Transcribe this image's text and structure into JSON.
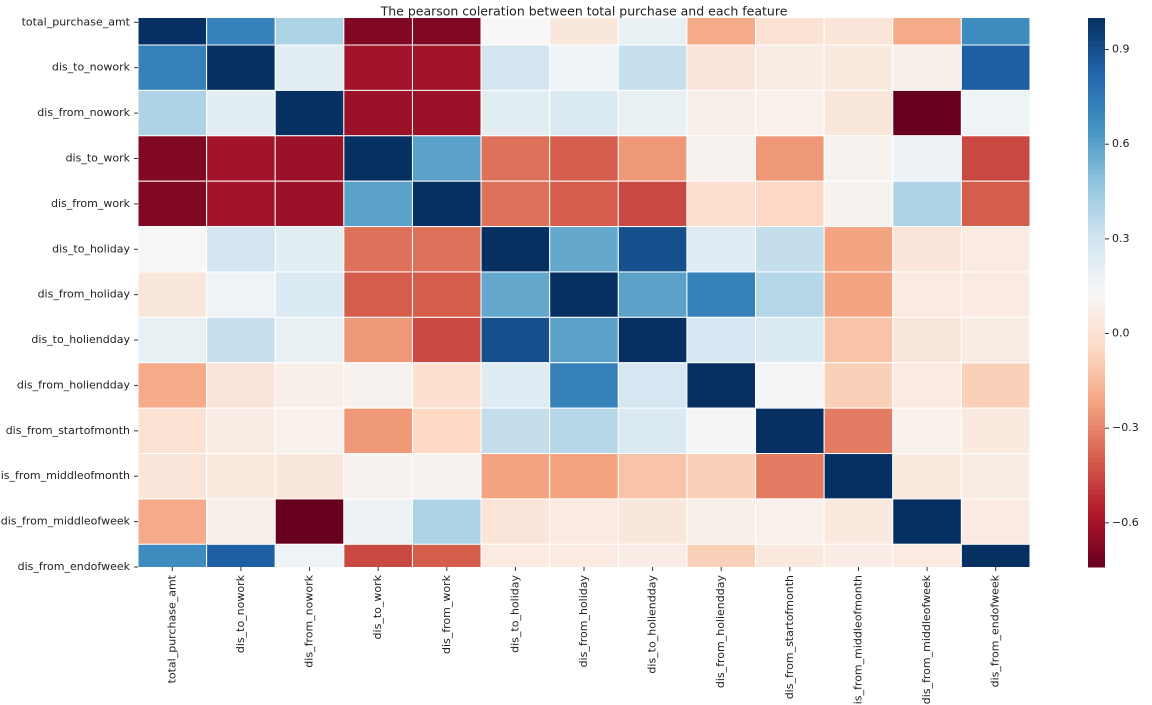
{
  "chart_data": {
    "type": "heatmap",
    "title": "The pearson coleration between total purchase and each feature",
    "categories": [
      "total_purchase_amt",
      "dis_to_nowork",
      "dis_from_nowork",
      "dis_to_work",
      "dis_from_work",
      "dis_to_holiday",
      "dis_from_holiday",
      "dis_to_holiendday",
      "dis_from_holiendday",
      "dis_from_startofmonth",
      "dis_from_middleofmonth",
      "dis_from_middleofweek",
      "dis_from_endofweek"
    ],
    "values": [
      [
        1.0,
        0.72,
        0.4,
        -0.68,
        -0.68,
        0.13,
        0.03,
        0.2,
        -0.2,
        0.0,
        0.02,
        -0.2,
        0.68
      ],
      [
        0.72,
        1.0,
        0.22,
        -0.6,
        -0.6,
        0.3,
        0.17,
        0.33,
        0.02,
        0.06,
        0.04,
        0.08,
        0.85
      ],
      [
        0.4,
        0.22,
        1.0,
        -0.62,
        -0.62,
        0.22,
        0.26,
        0.2,
        0.08,
        0.09,
        0.03,
        -0.74,
        0.17
      ],
      [
        -0.68,
        -0.6,
        -0.62,
        1.0,
        0.6,
        -0.35,
        -0.4,
        -0.25,
        0.1,
        -0.25,
        0.1,
        0.18,
        -0.45
      ],
      [
        -0.68,
        -0.6,
        -0.62,
        0.6,
        1.0,
        -0.35,
        -0.4,
        -0.45,
        -0.02,
        -0.05,
        0.1,
        0.4,
        -0.4
      ],
      [
        0.13,
        0.3,
        0.22,
        -0.35,
        -0.35,
        1.0,
        0.58,
        0.9,
        0.24,
        0.34,
        -0.22,
        0.02,
        0.05
      ],
      [
        0.03,
        0.17,
        0.26,
        -0.4,
        -0.4,
        0.58,
        1.0,
        0.6,
        0.72,
        0.38,
        -0.22,
        0.05,
        0.05
      ],
      [
        0.2,
        0.33,
        0.2,
        -0.25,
        -0.45,
        0.9,
        0.6,
        1.0,
        0.28,
        0.26,
        -0.12,
        0.03,
        0.06
      ],
      [
        -0.2,
        0.02,
        0.08,
        0.1,
        -0.02,
        0.24,
        0.72,
        0.28,
        1.0,
        0.15,
        -0.08,
        0.05,
        -0.08
      ],
      [
        0.0,
        0.06,
        0.09,
        -0.25,
        -0.05,
        0.34,
        0.38,
        0.26,
        0.15,
        1.0,
        -0.32,
        0.09,
        0.04
      ],
      [
        0.02,
        0.04,
        0.03,
        0.1,
        0.1,
        -0.22,
        -0.22,
        -0.12,
        -0.08,
        -0.32,
        1.0,
        0.04,
        0.06
      ],
      [
        -0.2,
        0.08,
        -0.74,
        0.18,
        0.4,
        0.02,
        0.05,
        0.03,
        0.08,
        0.09,
        0.04,
        1.0,
        0.05
      ],
      [
        0.68,
        0.85,
        0.17,
        -0.45,
        -0.4,
        0.05,
        0.05,
        0.06,
        -0.08,
        0.04,
        0.06,
        0.05,
        1.0
      ]
    ],
    "colorscale": [
      "#67001f",
      "#b2182b",
      "#d6604d",
      "#f4a582",
      "#fddbc7",
      "#f7f7f7",
      "#d1e5f0",
      "#92c5de",
      "#4393c3",
      "#2166ac",
      "#053061"
    ],
    "clim": [
      -0.74,
      1.0
    ],
    "cticks": [
      0.9,
      0.6,
      0.3,
      {
        "value": 0,
        "label": "0.0"
      },
      {
        "value": -0.3,
        "label": "−0.3"
      },
      {
        "value": -0.6,
        "label": "−0.6"
      }
    ]
  }
}
